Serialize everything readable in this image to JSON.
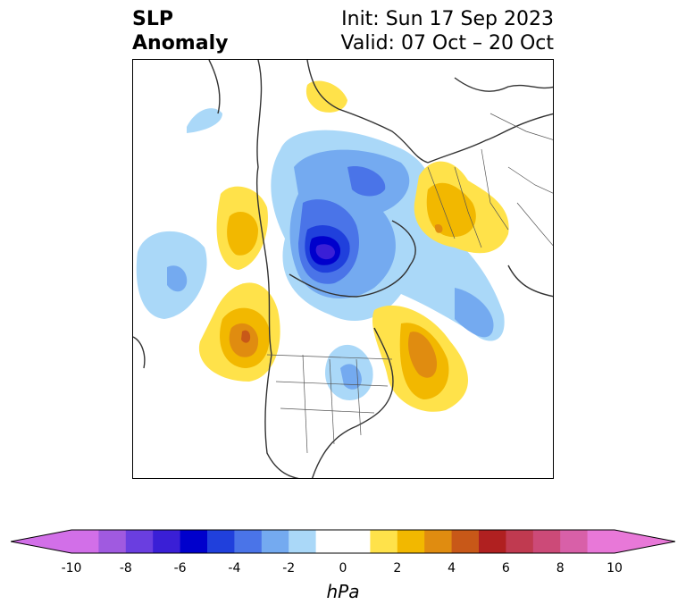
{
  "title": {
    "left_line1": "SLP",
    "left_line2": "Anomaly",
    "right_line1": "Init: Sun 17 Sep 2023",
    "right_line2": "Valid: 07 Oct – 20 Oct"
  },
  "colorbar": {
    "unit": "hPa",
    "ticks": [
      "-10",
      "-8",
      "-6",
      "-4",
      "-2",
      "0",
      "2",
      "4",
      "6",
      "8",
      "10"
    ],
    "levels": [
      -10,
      -9,
      -8,
      -7,
      -6,
      -5,
      -4,
      -3,
      -2,
      -1,
      1,
      2,
      3,
      4,
      5,
      6,
      7,
      8,
      9,
      10
    ],
    "colors": [
      "#d26fe8",
      "#a05ae0",
      "#6a3ee0",
      "#3a1fd6",
      "#0000cc",
      "#2040dc",
      "#4a74e8",
      "#74aaf0",
      "#aad8f8",
      "#ffffff",
      "#ffe24a",
      "#f2b800",
      "#e08c10",
      "#c85818",
      "#b02020",
      "#c03a50",
      "#cc4a78",
      "#d860a8",
      "#e878d8"
    ],
    "under_color": "#d26fe8",
    "over_color": "#e878d8"
  },
  "map": {
    "projection": "north-polar-stereographic",
    "features": [
      "coastlines",
      "country-borders",
      "us-state-borders"
    ]
  }
}
